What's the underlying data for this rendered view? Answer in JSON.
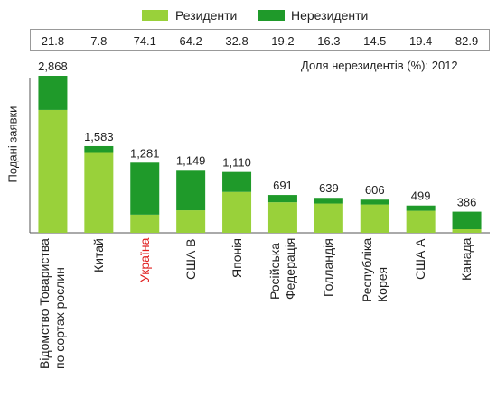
{
  "legend": {
    "residents_label": "Резиденти",
    "nonresidents_label": "Нерезиденти"
  },
  "colors": {
    "residents": "#99d13a",
    "nonresidents": "#1f9a2a",
    "highlight": "#e02020"
  },
  "share_note": "Доля нерезидентів (%): 2012",
  "chart_data": {
    "type": "bar",
    "stacked": true,
    "ylabel": "Подані заявки",
    "categories": [
      [
        "Відомство Товариства",
        "по сортах рослин"
      ],
      [
        "Китай"
      ],
      [
        "Україна"
      ],
      [
        "США В"
      ],
      [
        "Японія"
      ],
      [
        "Російська",
        "Федерація"
      ],
      [
        "Голландія"
      ],
      [
        "Республіка",
        "Корея"
      ],
      [
        "США А"
      ],
      [
        "Канада"
      ]
    ],
    "highlight_category_index": 2,
    "totals": [
      2868,
      1583,
      1281,
      1149,
      1110,
      691,
      639,
      606,
      499,
      386
    ],
    "total_labels": [
      "2,868",
      "1,583",
      "1,281",
      "1,149",
      "1,110",
      "691",
      "639",
      "606",
      "499",
      "386"
    ],
    "nonresident_share_labels": [
      "21.8",
      "7.8",
      "74.1",
      "64.2",
      "32.8",
      "19.2",
      "16.3",
      "14.5",
      "19.4",
      "82.9"
    ],
    "series": [
      {
        "name": "Резиденти",
        "values": [
          2243,
          1459,
          332,
          411,
          746,
          558,
          535,
          518,
          402,
          66
        ]
      },
      {
        "name": "Нерезиденти",
        "values": [
          625,
          124,
          949,
          738,
          364,
          133,
          104,
          88,
          97,
          320
        ]
      }
    ],
    "ylim": [
      0,
      3000
    ],
    "grid": false,
    "legend_position": "top"
  }
}
